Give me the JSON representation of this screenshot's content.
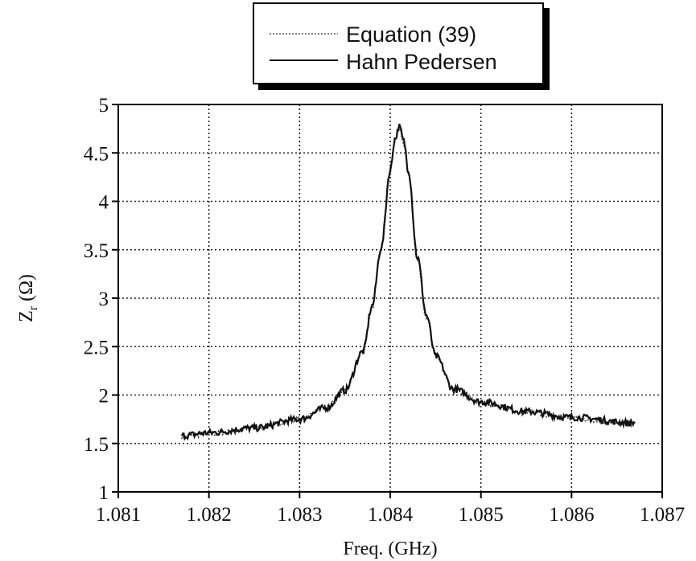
{
  "chart_data": {
    "type": "line",
    "title": "",
    "xlabel": "Freq.  (GHz)",
    "ylabel": "Z",
    "ylabel_sub": "r",
    "ylabel_unit": "(Ω)",
    "xlim": [
      1.081,
      1.087
    ],
    "ylim": [
      1,
      5
    ],
    "xticks": [
      "1.081",
      "1.082",
      "1.083",
      "1.084",
      "1.085",
      "1.086",
      "1.087"
    ],
    "yticks": [
      "1",
      "1.5",
      "2",
      "2.5",
      "3",
      "3.5",
      "4",
      "4.5",
      "5"
    ],
    "grid": true,
    "legend_position": "top-center",
    "series": [
      {
        "name": "Equation (39)",
        "style": "dotted",
        "x": [
          1.0817,
          1.082,
          1.0825,
          1.083,
          1.0833,
          1.0835,
          1.0837,
          1.0838,
          1.0839,
          1.084,
          1.08405,
          1.0841,
          1.08415,
          1.0842,
          1.0843,
          1.0844,
          1.0845,
          1.0847,
          1.085,
          1.0855,
          1.086,
          1.0867
        ],
        "y": [
          1.57,
          1.6,
          1.66,
          1.75,
          1.88,
          2.04,
          2.45,
          2.9,
          3.5,
          4.3,
          4.62,
          4.75,
          4.6,
          4.3,
          3.4,
          2.8,
          2.4,
          2.05,
          1.92,
          1.82,
          1.76,
          1.7
        ]
      },
      {
        "name": "Hahn  Pedersen",
        "style": "solid",
        "x": [
          1.0817,
          1.082,
          1.0825,
          1.083,
          1.0833,
          1.0835,
          1.0837,
          1.0838,
          1.0839,
          1.084,
          1.08405,
          1.0841,
          1.08415,
          1.0842,
          1.0843,
          1.0844,
          1.0845,
          1.0847,
          1.085,
          1.0855,
          1.086,
          1.0867
        ],
        "y": [
          1.58,
          1.61,
          1.66,
          1.75,
          1.87,
          2.05,
          2.45,
          2.92,
          3.52,
          4.32,
          4.64,
          4.77,
          4.62,
          4.32,
          3.42,
          2.82,
          2.4,
          2.06,
          1.93,
          1.83,
          1.77,
          1.71
        ]
      }
    ]
  }
}
